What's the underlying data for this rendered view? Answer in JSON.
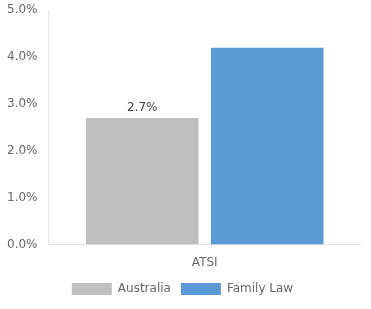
{
  "chart_data": {
    "type": "bar",
    "categories": [
      "ATSI"
    ],
    "series": [
      {
        "name": "Australia",
        "color": "#bfbfbf",
        "values": [
          0.027
        ],
        "value_labels": [
          "2.7%"
        ]
      },
      {
        "name": "Family Law",
        "color": "#5b9bd5",
        "values": [
          0.042
        ]
      }
    ],
    "ylim": [
      0,
      0.05
    ],
    "yticks": [
      {
        "value": 0.0,
        "label": "0.0%"
      },
      {
        "value": 0.01,
        "label": "1.0%"
      },
      {
        "value": 0.02,
        "label": "2.0%"
      },
      {
        "value": 0.03,
        "label": "3.0%"
      },
      {
        "value": 0.04,
        "label": "4.0%"
      },
      {
        "value": 0.05,
        "label": "5.0%"
      }
    ],
    "grid": false,
    "legend": "bottom"
  }
}
